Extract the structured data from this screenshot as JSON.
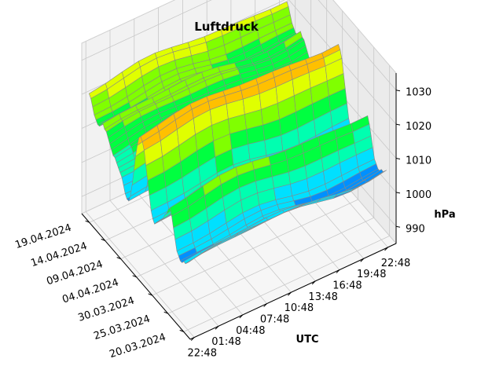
{
  "chart_data": {
    "type": "surface3d",
    "title": "Luftdruck",
    "xlabel": "",
    "ylabel": "UTC",
    "zlabel": "hPa",
    "x_ticks": [
      "20.03.2024",
      "25.03.2024",
      "30.03.2024",
      "04.04.2024",
      "09.04.2024",
      "14.04.2024",
      "19.04.2024"
    ],
    "y_ticks": [
      "22:48",
      "01:48",
      "04:48",
      "07:48",
      "10:48",
      "13:48",
      "16:48",
      "19:48",
      "22:48"
    ],
    "z_ticks": [
      "990",
      "1000",
      "1010",
      "1020",
      "1030"
    ],
    "zlim": [
      985,
      1035
    ],
    "colormap": [
      "#0000e0",
      "#0090ff",
      "#00e0ff",
      "#00ffb0",
      "#00ff40",
      "#80ff00",
      "#e0ff00",
      "#ffc000"
    ],
    "edge_color": "#888888",
    "pressure_by_date": [
      1006,
      1005,
      1004,
      1004,
      1003,
      1003,
      1004,
      1005,
      1008,
      1011,
      1014,
      1016,
      1015,
      1013,
      1012,
      1010,
      1009,
      1008,
      1007,
      1006,
      1005,
      1006,
      1008,
      1012,
      1016,
      1020,
      1024,
      1026,
      1027,
      1026,
      1023,
      1019,
      1014,
      1009,
      1005,
      1003,
      1003,
      1004,
      1006,
      1008,
      1009,
      1010,
      1011,
      1012,
      1012,
      1013,
      1014,
      1015,
      1016,
      1016,
      1017,
      1016,
      1015,
      1015,
      1016,
      1017,
      1019,
      1021,
      1022
    ]
  }
}
